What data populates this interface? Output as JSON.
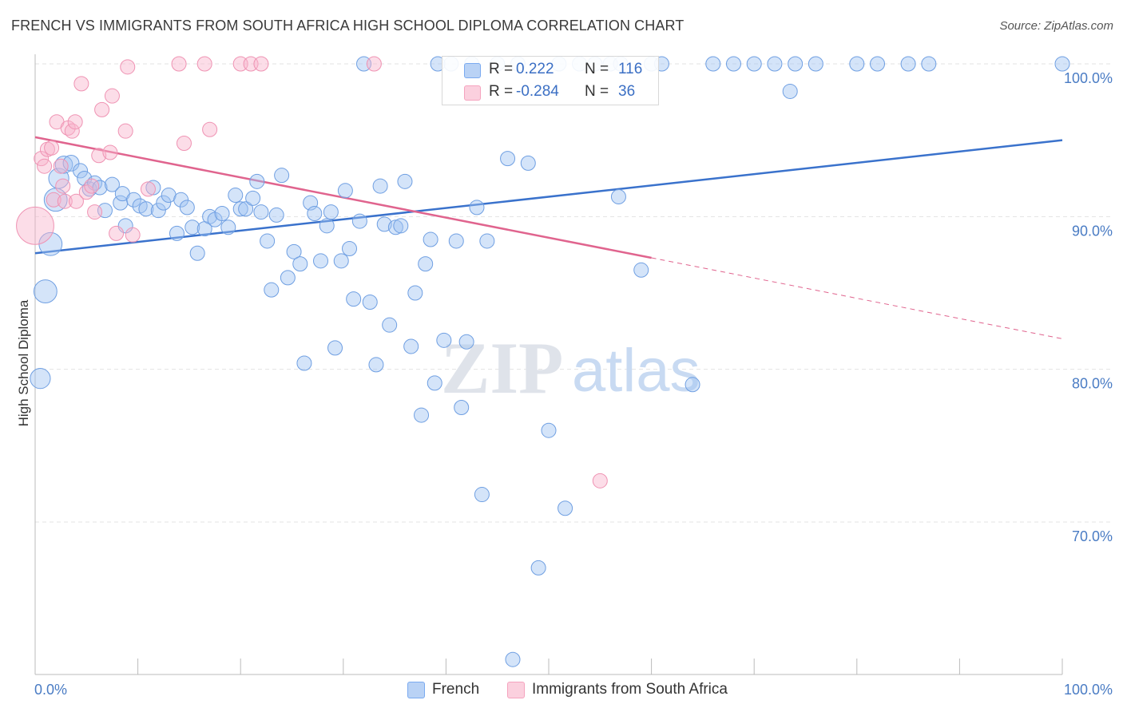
{
  "title": "FRENCH VS IMMIGRANTS FROM SOUTH AFRICA HIGH SCHOOL DIPLOMA CORRELATION CHART",
  "source": "Source: ZipAtlas.com",
  "watermark": "ZIPatlas",
  "legend": {
    "r_label": "R =",
    "n_label": "N =",
    "french": {
      "r": "0.222",
      "n": "116"
    },
    "immigrants": {
      "r": "-0.284",
      "n": "36"
    }
  },
  "chart_data": {
    "type": "scatter",
    "title": "FRENCH VS IMMIGRANTS FROM SOUTH AFRICA HIGH SCHOOL DIPLOMA CORRELATION CHART",
    "xlabel": "",
    "ylabel": "High School Diploma",
    "xlim": [
      0,
      100
    ],
    "ylim": [
      60,
      101
    ],
    "x_tick_labels": [
      "0.0%",
      "100.0%"
    ],
    "y_ticks": [
      70,
      80,
      90,
      100
    ],
    "y_tick_labels": [
      "70.0%",
      "80.0%",
      "90.0%",
      "100.0%"
    ],
    "grid": true,
    "legend_position": "top-center",
    "colors": {
      "french": "#7aaaf0",
      "french_line": "#3a72cc",
      "immigrants": "#f5a3be",
      "immigrants_line": "#e0648e"
    },
    "series": [
      {
        "name": "French",
        "r": 0.222,
        "n": 116,
        "trend": {
          "x": [
            0,
            100
          ],
          "y": [
            87.6,
            95.0
          ]
        },
        "points": [
          [
            0.5,
            79.4,
            14
          ],
          [
            1.0,
            85.1,
            16
          ],
          [
            1.5,
            88.2,
            16
          ],
          [
            2.0,
            91.1,
            16
          ],
          [
            2.3,
            92.5,
            14
          ],
          [
            2.8,
            93.4,
            12
          ],
          [
            3.5,
            93.5,
            11
          ],
          [
            4.4,
            93.0,
            10
          ],
          [
            4.8,
            92.5,
            10
          ],
          [
            5.3,
            91.8,
            10
          ],
          [
            5.8,
            92.2,
            10
          ],
          [
            6.3,
            91.9,
            10
          ],
          [
            6.8,
            90.4,
            10
          ],
          [
            7.5,
            92.1,
            10
          ],
          [
            8.3,
            90.9,
            10
          ],
          [
            8.5,
            91.5,
            10
          ],
          [
            8.8,
            89.4,
            10
          ],
          [
            9.6,
            91.1,
            10
          ],
          [
            10.2,
            90.7,
            10
          ],
          [
            10.8,
            90.5,
            10
          ],
          [
            11.5,
            91.9,
            10
          ],
          [
            12.0,
            90.4,
            10
          ],
          [
            12.5,
            90.9,
            10
          ],
          [
            13.0,
            91.4,
            10
          ],
          [
            13.8,
            88.9,
            10
          ],
          [
            14.2,
            91.1,
            10
          ],
          [
            14.8,
            90.6,
            10
          ],
          [
            15.3,
            89.3,
            10
          ],
          [
            15.8,
            87.6,
            10
          ],
          [
            16.5,
            89.2,
            10
          ],
          [
            17.0,
            90.0,
            10
          ],
          [
            17.5,
            89.8,
            10
          ],
          [
            18.2,
            90.2,
            10
          ],
          [
            18.8,
            89.3,
            10
          ],
          [
            19.5,
            91.4,
            10
          ],
          [
            20.0,
            90.5,
            10
          ],
          [
            20.5,
            90.5,
            10
          ],
          [
            21.2,
            91.2,
            10
          ],
          [
            21.6,
            92.3,
            10
          ],
          [
            22.0,
            90.3,
            10
          ],
          [
            22.6,
            88.4,
            10
          ],
          [
            23.0,
            85.2,
            10
          ],
          [
            23.5,
            90.1,
            10
          ],
          [
            24.0,
            92.7,
            10
          ],
          [
            24.6,
            86.0,
            10
          ],
          [
            25.2,
            87.7,
            10
          ],
          [
            25.8,
            86.9,
            10
          ],
          [
            26.2,
            80.4,
            10
          ],
          [
            26.8,
            90.9,
            10
          ],
          [
            27.2,
            90.2,
            10
          ],
          [
            27.8,
            87.1,
            10
          ],
          [
            28.4,
            89.4,
            10
          ],
          [
            28.8,
            90.3,
            10
          ],
          [
            29.2,
            81.4,
            10
          ],
          [
            29.8,
            87.1,
            10
          ],
          [
            30.2,
            91.7,
            10
          ],
          [
            30.6,
            87.9,
            10
          ],
          [
            31.0,
            84.6,
            10
          ],
          [
            31.6,
            89.7,
            10
          ],
          [
            32.0,
            100.0,
            10
          ],
          [
            32.6,
            84.4,
            10
          ],
          [
            33.2,
            80.3,
            10
          ],
          [
            33.6,
            92.0,
            10
          ],
          [
            34.0,
            89.5,
            10
          ],
          [
            34.5,
            82.9,
            10
          ],
          [
            35.1,
            89.3,
            10
          ],
          [
            35.6,
            89.4,
            10
          ],
          [
            36.0,
            92.3,
            10
          ],
          [
            36.6,
            81.5,
            10
          ],
          [
            37.0,
            85.0,
            10
          ],
          [
            37.6,
            77.0,
            10
          ],
          [
            38.0,
            86.9,
            10
          ],
          [
            38.5,
            88.5,
            10
          ],
          [
            38.9,
            79.1,
            10
          ],
          [
            39.2,
            100.0,
            10
          ],
          [
            39.8,
            81.9,
            10
          ],
          [
            40.5,
            100.0,
            10
          ],
          [
            41.0,
            88.4,
            10
          ],
          [
            41.5,
            77.5,
            10
          ],
          [
            42.0,
            81.8,
            10
          ],
          [
            42.5,
            100.0,
            10
          ],
          [
            43.0,
            90.6,
            10
          ],
          [
            43.5,
            71.8,
            10
          ],
          [
            44.0,
            88.4,
            10
          ],
          [
            45.0,
            100.0,
            10
          ],
          [
            46.0,
            93.8,
            10
          ],
          [
            46.5,
            61.0,
            10
          ],
          [
            47.0,
            100.0,
            10
          ],
          [
            48.0,
            93.5,
            10
          ],
          [
            49.0,
            67.0,
            10
          ],
          [
            50.0,
            76.0,
            10
          ],
          [
            51.0,
            100.0,
            10
          ],
          [
            51.6,
            70.9,
            10
          ],
          [
            53.0,
            100.0,
            10
          ],
          [
            54.5,
            100.0,
            10
          ],
          [
            56.0,
            100.0,
            10
          ],
          [
            56.8,
            91.3,
            10
          ],
          [
            57.0,
            100.0,
            10
          ],
          [
            59.0,
            86.5,
            10
          ],
          [
            60.0,
            100.0,
            10
          ],
          [
            61.0,
            100.0,
            10
          ],
          [
            64.0,
            79.0,
            10
          ],
          [
            66.0,
            100.0,
            10
          ],
          [
            68.0,
            100.0,
            10
          ],
          [
            70.0,
            100.0,
            10
          ],
          [
            72.0,
            100.0,
            10
          ],
          [
            73.5,
            98.2,
            10
          ],
          [
            74.0,
            100.0,
            10
          ],
          [
            76.0,
            100.0,
            10
          ],
          [
            80.0,
            100.0,
            10
          ],
          [
            82.0,
            100.0,
            10
          ],
          [
            85.0,
            100.0,
            10
          ],
          [
            87.0,
            100.0,
            10
          ],
          [
            100.0,
            100.0,
            10
          ]
        ]
      },
      {
        "name": "Immigrants from South Africa",
        "r": -0.284,
        "n": 36,
        "trend": {
          "x": [
            0,
            60
          ],
          "y": [
            95.2,
            87.3
          ]
        },
        "trend_extension": {
          "x": [
            60,
            100
          ],
          "y": [
            87.3,
            82.0
          ]
        },
        "points": [
          [
            0.0,
            89.4,
            26
          ],
          [
            0.6,
            93.8,
            10
          ],
          [
            0.9,
            93.3,
            10
          ],
          [
            1.2,
            94.4,
            10
          ],
          [
            1.6,
            94.5,
            10
          ],
          [
            1.8,
            91.1,
            10
          ],
          [
            2.1,
            96.2,
            10
          ],
          [
            2.5,
            93.3,
            10
          ],
          [
            2.7,
            92.0,
            10
          ],
          [
            2.9,
            91.0,
            10
          ],
          [
            3.2,
            95.8,
            10
          ],
          [
            3.6,
            95.6,
            10
          ],
          [
            3.9,
            96.2,
            10
          ],
          [
            4.0,
            91.0,
            10
          ],
          [
            4.5,
            98.7,
            10
          ],
          [
            5.0,
            91.6,
            10
          ],
          [
            5.5,
            92.0,
            10
          ],
          [
            5.8,
            90.3,
            10
          ],
          [
            6.2,
            94.0,
            10
          ],
          [
            6.5,
            97.0,
            10
          ],
          [
            7.3,
            94.2,
            10
          ],
          [
            7.5,
            97.9,
            10
          ],
          [
            7.9,
            88.9,
            10
          ],
          [
            8.8,
            95.6,
            10
          ],
          [
            9.0,
            99.8,
            10
          ],
          [
            9.5,
            88.8,
            10
          ],
          [
            11.0,
            91.8,
            10
          ],
          [
            14.5,
            94.8,
            10
          ],
          [
            14.0,
            100.0,
            10
          ],
          [
            16.5,
            100.0,
            10
          ],
          [
            17.0,
            95.7,
            10
          ],
          [
            20.0,
            100.0,
            10
          ],
          [
            21.0,
            100.0,
            10
          ],
          [
            22.0,
            100.0,
            10
          ],
          [
            33.0,
            100.0,
            10
          ],
          [
            55.0,
            72.7,
            10
          ]
        ]
      }
    ]
  }
}
